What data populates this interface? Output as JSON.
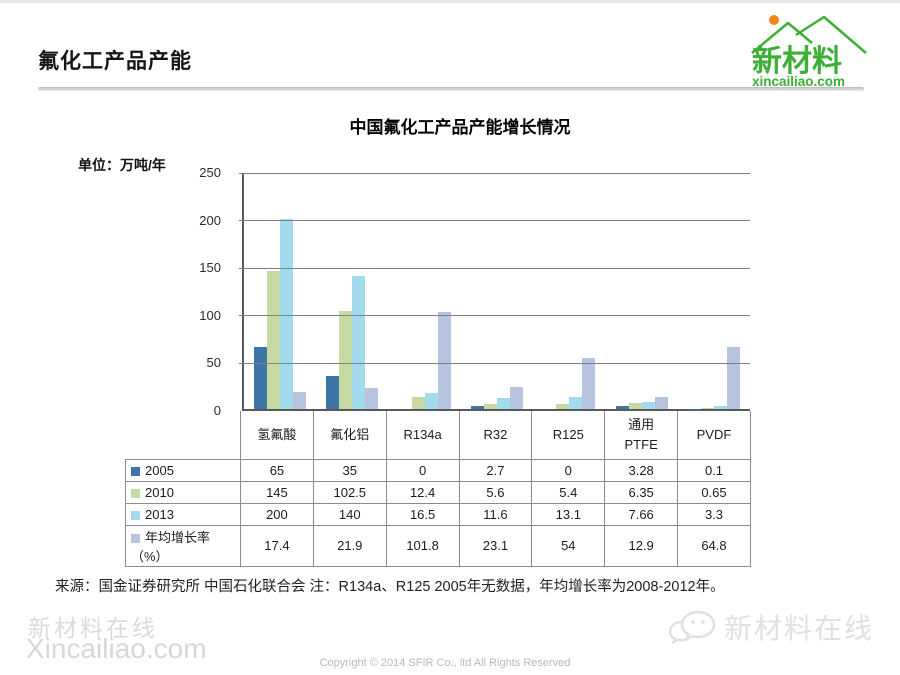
{
  "page": {
    "title": "氟化工产品产能",
    "logo": {
      "brand": "新材料",
      "domain": "xincailiao.com",
      "green": "#3cb035",
      "orange": "#f08519"
    }
  },
  "chart_data": {
    "type": "bar",
    "title": "中国氟化工产品产能增长情况",
    "unit_label": "单位：万吨/年",
    "categories": [
      "氢氟酸",
      "氟化铝",
      "R134a",
      "R32",
      "R125",
      "通用\nPTFE",
      "PVDF"
    ],
    "series": [
      {
        "name": "2005",
        "color": "#3f74a6",
        "values": [
          65,
          35,
          0,
          2.7,
          0,
          3.28,
          0.1
        ]
      },
      {
        "name": "2010",
        "color": "#c5d9a2",
        "values": [
          145,
          102.5,
          12.4,
          5.6,
          5.4,
          6.35,
          0.65
        ]
      },
      {
        "name": "2013",
        "color": "#a2dbee",
        "values": [
          200,
          140,
          16.5,
          11.6,
          13.1,
          7.66,
          3.3
        ]
      },
      {
        "name": "年均增长率（%）",
        "color": "#b7c4e0",
        "values": [
          17.4,
          21.9,
          101.8,
          23.1,
          54,
          12.9,
          64.8
        ]
      }
    ],
    "ylim": [
      0,
      250
    ],
    "ytick_interval": 50,
    "grid": true,
    "legend_position": "table-left"
  },
  "footer": {
    "source_note": "来源：国金证券研究所 中国石化联合会 注：R134a、R125 2005年无数据，年均增长率为2008-2012年。",
    "watermark_cn": "新材料在线",
    "watermark_en": "Xincailiao.com",
    "copyright": "Copyright © 2014 SFIR Co., ltd All Rights Reserved",
    "wechat_watermark": "新材料在线"
  }
}
